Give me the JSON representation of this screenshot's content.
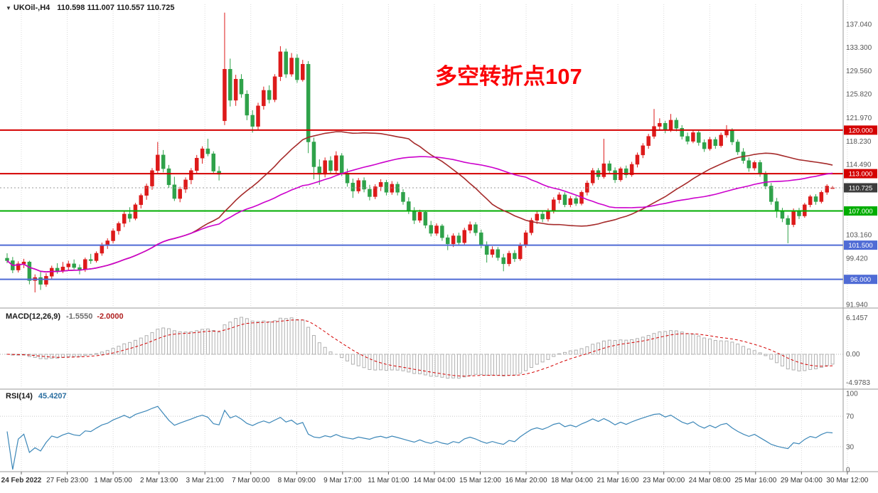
{
  "window": {
    "title_symbol": "UKOil-,H4",
    "title_ohlc": "110.598 111.007 110.557 110.725"
  },
  "annotation": {
    "text": "多空转折点107",
    "color": "#fb0307"
  },
  "indicators": {
    "macd": {
      "label": "MACD(12,26,9)",
      "value_main": "-1.5550",
      "value_signal": "-2.0000",
      "axis_labels": [
        "6.1457",
        "0.00",
        "-4.9783"
      ]
    },
    "rsi": {
      "label": "RSI(14)",
      "value": "45.4207",
      "axis_labels": [
        "100",
        "70",
        "30",
        "0"
      ],
      "levels": [
        70,
        30
      ]
    }
  },
  "price_axis": {
    "ticks": [
      {
        "label": "137.040",
        "price": 137.04
      },
      {
        "label": "133.300",
        "price": 133.3
      },
      {
        "label": "129.560",
        "price": 129.56
      },
      {
        "label": "125.820",
        "price": 125.82
      },
      {
        "label": "121.970",
        "price": 121.97
      },
      {
        "label": "118.230",
        "price": 118.23
      },
      {
        "label": "114.490",
        "price": 114.49
      },
      {
        "label": "103.160",
        "price": 103.16
      },
      {
        "label": "99.420",
        "price": 99.42
      },
      {
        "label": "91.940",
        "price": 91.94
      }
    ]
  },
  "levels": [
    {
      "label": "120.000",
      "price": 120.0,
      "color": "#d40000"
    },
    {
      "label": "113.000",
      "price": 113.0,
      "color": "#d40000"
    },
    {
      "label": "107.000",
      "price": 107.0,
      "color": "#00ad00"
    },
    {
      "label": "101.500",
      "price": 101.5,
      "color": "#4f6bd5"
    },
    {
      "label": "96.000",
      "price": 96.0,
      "color": "#4f6bd5"
    }
  ],
  "current_price": {
    "value": 110.725,
    "label": "110.725",
    "color": "#3c3c3c"
  },
  "time_axis": {
    "labels": [
      "24 Feb 2022",
      "27 Feb 23:00",
      "1 Mar 05:00",
      "2 Mar 13:00",
      "3 Mar 21:00",
      "7 Mar 00:00",
      "8 Mar 09:00",
      "9 Mar 17:00",
      "11 Mar 01:00",
      "14 Mar 04:00",
      "15 Mar 12:00",
      "16 Mar 20:00",
      "18 Mar 04:00",
      "21 Mar 16:00",
      "23 Mar 00:00",
      "24 Mar 08:00",
      "25 Mar 16:00",
      "29 Mar 04:00",
      "30 Mar 12:00"
    ]
  },
  "chart_data": {
    "type": "candlestick",
    "symbol": "UKOil-",
    "timeframe": "H4",
    "title": "UKOil-,H4 110.598 111.007 110.557 110.725",
    "y_range": {
      "top": 140.24,
      "bottom": 91.73
    },
    "up_color": "#dd1a1a",
    "down_color": "#2fa24a",
    "ma_fast": {
      "period": 34,
      "color": "#a52a2a"
    },
    "ma_slow": {
      "period": 55,
      "color": "#cc00cc"
    },
    "macd_params": {
      "fast": 12,
      "slow": 26,
      "signal": 9
    },
    "rsi_params": {
      "period": 14
    },
    "ohlc": [
      [
        99.4,
        100.2,
        98.6,
        99.0
      ],
      [
        99.0,
        99.6,
        97.0,
        97.5
      ],
      [
        97.5,
        98.9,
        97.1,
        98.5
      ],
      [
        98.5,
        99.3,
        97.8,
        98.8
      ],
      [
        98.8,
        99.0,
        95.2,
        95.8
      ],
      [
        95.8,
        96.8,
        93.9,
        96.3
      ],
      [
        96.3,
        97.2,
        94.3,
        95.2
      ],
      [
        95.2,
        97.0,
        94.8,
        96.5
      ],
      [
        96.5,
        98.2,
        96.0,
        97.8
      ],
      [
        97.8,
        98.6,
        96.9,
        97.3
      ],
      [
        97.3,
        98.8,
        97.0,
        98.0
      ],
      [
        98.0,
        99.0,
        97.4,
        98.5
      ],
      [
        98.5,
        99.2,
        97.6,
        97.9
      ],
      [
        97.9,
        98.4,
        96.8,
        97.6
      ],
      [
        97.6,
        99.5,
        97.2,
        99.2
      ],
      [
        99.2,
        100.1,
        98.5,
        99.0
      ],
      [
        99.0,
        100.5,
        98.7,
        100.2
      ],
      [
        100.2,
        101.9,
        99.8,
        101.5
      ],
      [
        101.5,
        102.6,
        100.9,
        102.2
      ],
      [
        102.2,
        104.2,
        101.8,
        103.8
      ],
      [
        103.8,
        105.3,
        103.2,
        105.0
      ],
      [
        105.0,
        106.9,
        104.4,
        106.5
      ],
      [
        106.5,
        107.6,
        105.2,
        105.8
      ],
      [
        105.8,
        108.3,
        105.5,
        108.0
      ],
      [
        108.0,
        109.8,
        107.4,
        109.5
      ],
      [
        109.5,
        111.4,
        108.8,
        111.0
      ],
      [
        111.0,
        113.9,
        110.4,
        113.5
      ],
      [
        113.5,
        118.1,
        113.0,
        116.0
      ],
      [
        116.0,
        116.8,
        113.2,
        113.8
      ],
      [
        113.8,
        114.4,
        110.7,
        111.2
      ],
      [
        111.2,
        112.5,
        108.6,
        109.0
      ],
      [
        109.0,
        110.9,
        108.4,
        110.5
      ],
      [
        110.5,
        112.4,
        109.9,
        112.0
      ],
      [
        112.0,
        113.9,
        111.3,
        113.5
      ],
      [
        113.5,
        116.0,
        112.9,
        115.5
      ],
      [
        115.5,
        117.4,
        114.6,
        117.0
      ],
      [
        117.0,
        118.6,
        115.8,
        116.2
      ],
      [
        116.2,
        116.6,
        112.9,
        113.4
      ],
      [
        113.4,
        114.2,
        111.9,
        112.9
      ],
      [
        121.5,
        138.9,
        120.8,
        129.8
      ],
      [
        129.8,
        131.5,
        123.8,
        124.8
      ],
      [
        124.8,
        128.9,
        123.9,
        128.2
      ],
      [
        128.2,
        129.0,
        125.2,
        125.8
      ],
      [
        125.8,
        126.4,
        121.6,
        122.4
      ],
      [
        122.4,
        123.2,
        119.6,
        120.6
      ],
      [
        120.6,
        124.4,
        120.1,
        123.9
      ],
      [
        123.9,
        127.0,
        123.3,
        126.4
      ],
      [
        126.4,
        127.2,
        124.3,
        124.9
      ],
      [
        124.9,
        129.0,
        124.5,
        128.6
      ],
      [
        128.6,
        133.5,
        127.9,
        132.6
      ],
      [
        132.6,
        133.1,
        128.4,
        129.0
      ],
      [
        129.0,
        132.4,
        128.6,
        131.6
      ],
      [
        131.6,
        132.2,
        127.6,
        128.1
      ],
      [
        128.1,
        131.3,
        127.8,
        130.6
      ],
      [
        130.6,
        131.1,
        116.3,
        118.1
      ],
      [
        118.1,
        118.8,
        112.1,
        114.1
      ],
      [
        114.1,
        115.3,
        111.2,
        112.9
      ],
      [
        112.9,
        115.6,
        112.4,
        115.1
      ],
      [
        115.1,
        115.8,
        112.9,
        113.5
      ],
      [
        113.5,
        116.6,
        113.1,
        115.9
      ],
      [
        115.9,
        116.3,
        112.6,
        113.1
      ],
      [
        113.1,
        113.8,
        110.9,
        111.5
      ],
      [
        111.5,
        112.2,
        109.1,
        110.2
      ],
      [
        110.2,
        112.3,
        109.8,
        111.9
      ],
      [
        111.9,
        112.4,
        110.0,
        110.5
      ],
      [
        110.5,
        111.2,
        108.7,
        109.3
      ],
      [
        109.3,
        111.3,
        108.9,
        110.9
      ],
      [
        110.9,
        112.1,
        110.2,
        111.6
      ],
      [
        111.6,
        112.0,
        109.5,
        110.0
      ],
      [
        110.0,
        111.8,
        109.6,
        111.3
      ],
      [
        111.3,
        111.7,
        109.5,
        110.0
      ],
      [
        110.0,
        110.5,
        108.0,
        108.5
      ],
      [
        108.5,
        109.2,
        106.5,
        107.0
      ],
      [
        107.0,
        107.6,
        104.9,
        105.5
      ],
      [
        105.5,
        107.2,
        105.1,
        106.8
      ],
      [
        106.8,
        107.1,
        104.2,
        104.7
      ],
      [
        104.7,
        105.4,
        102.9,
        103.4
      ],
      [
        103.4,
        105.0,
        103.0,
        104.6
      ],
      [
        104.6,
        104.9,
        102.2,
        102.7
      ],
      [
        102.7,
        103.2,
        100.7,
        101.7
      ],
      [
        101.7,
        103.4,
        101.2,
        103.0
      ],
      [
        103.0,
        103.5,
        101.4,
        101.9
      ],
      [
        101.9,
        104.3,
        101.6,
        103.9
      ],
      [
        103.9,
        105.3,
        103.4,
        104.8
      ],
      [
        104.8,
        105.2,
        103.0,
        103.5
      ],
      [
        103.5,
        104.0,
        101.0,
        101.5
      ],
      [
        101.5,
        102.1,
        98.7,
        100.0
      ],
      [
        100.0,
        101.3,
        99.5,
        100.8
      ],
      [
        100.8,
        101.2,
        99.0,
        99.5
      ],
      [
        99.5,
        100.1,
        97.3,
        98.5
      ],
      [
        98.5,
        100.6,
        98.1,
        100.2
      ],
      [
        100.2,
        100.7,
        98.8,
        99.3
      ],
      [
        99.3,
        101.9,
        99.0,
        101.5
      ],
      [
        101.5,
        103.9,
        101.1,
        103.5
      ],
      [
        103.5,
        105.9,
        103.1,
        105.5
      ],
      [
        105.5,
        106.9,
        104.9,
        106.5
      ],
      [
        106.5,
        106.9,
        105.2,
        105.7
      ],
      [
        105.7,
        107.4,
        105.3,
        107.0
      ],
      [
        107.0,
        109.2,
        106.6,
        108.8
      ],
      [
        108.8,
        110.0,
        108.2,
        109.6
      ],
      [
        109.6,
        110.0,
        107.6,
        108.0
      ],
      [
        108.0,
        109.4,
        107.6,
        109.0
      ],
      [
        109.0,
        109.4,
        107.8,
        108.2
      ],
      [
        108.2,
        110.3,
        107.9,
        110.0
      ],
      [
        110.0,
        111.9,
        109.5,
        111.5
      ],
      [
        111.5,
        113.9,
        111.1,
        113.5
      ],
      [
        113.5,
        113.9,
        112.0,
        112.5
      ],
      [
        112.5,
        118.6,
        112.2,
        114.6
      ],
      [
        114.6,
        115.1,
        113.0,
        113.5
      ],
      [
        113.5,
        114.0,
        111.5,
        112.0
      ],
      [
        112.0,
        114.1,
        111.7,
        113.8
      ],
      [
        113.8,
        114.3,
        112.3,
        112.8
      ],
      [
        112.8,
        114.9,
        112.5,
        114.5
      ],
      [
        114.5,
        116.4,
        114.0,
        116.0
      ],
      [
        116.0,
        117.9,
        115.5,
        117.5
      ],
      [
        117.5,
        119.4,
        117.0,
        119.0
      ],
      [
        119.0,
        123.4,
        118.6,
        120.6
      ],
      [
        120.6,
        121.9,
        119.9,
        121.1
      ],
      [
        121.1,
        121.5,
        119.5,
        120.0
      ],
      [
        120.0,
        122.6,
        119.7,
        121.6
      ],
      [
        121.6,
        122.0,
        119.8,
        120.3
      ],
      [
        120.3,
        120.8,
        118.5,
        119.0
      ],
      [
        119.0,
        119.6,
        117.7,
        118.2
      ],
      [
        118.2,
        120.1,
        117.9,
        119.6
      ],
      [
        119.6,
        120.0,
        117.5,
        118.0
      ],
      [
        118.0,
        118.5,
        116.5,
        117.0
      ],
      [
        117.0,
        118.9,
        116.7,
        118.5
      ],
      [
        118.5,
        118.9,
        117.0,
        117.5
      ],
      [
        117.5,
        119.6,
        117.2,
        119.2
      ],
      [
        119.2,
        120.8,
        118.8,
        119.9
      ],
      [
        119.9,
        120.3,
        117.6,
        118.1
      ],
      [
        118.1,
        118.5,
        116.0,
        116.5
      ],
      [
        116.5,
        117.1,
        114.6,
        115.1
      ],
      [
        115.1,
        115.6,
        113.3,
        113.9
      ],
      [
        113.9,
        115.1,
        113.5,
        114.8
      ],
      [
        114.8,
        115.2,
        112.5,
        113.0
      ],
      [
        113.0,
        113.4,
        110.5,
        111.0
      ],
      [
        111.0,
        111.5,
        108.0,
        108.5
      ],
      [
        108.5,
        109.1,
        105.9,
        107.0
      ],
      [
        107.0,
        107.5,
        105.2,
        105.8
      ],
      [
        105.8,
        106.3,
        101.8,
        104.8
      ],
      [
        104.8,
        107.4,
        104.4,
        107.0
      ],
      [
        107.0,
        107.5,
        105.7,
        106.2
      ],
      [
        106.2,
        108.3,
        105.9,
        108.0
      ],
      [
        108.0,
        109.6,
        107.6,
        109.3
      ],
      [
        109.3,
        109.7,
        108.0,
        108.5
      ],
      [
        108.5,
        110.3,
        108.2,
        110.0
      ],
      [
        110.0,
        111.3,
        109.6,
        111.0
      ],
      [
        110.598,
        111.007,
        110.557,
        110.725
      ]
    ]
  }
}
